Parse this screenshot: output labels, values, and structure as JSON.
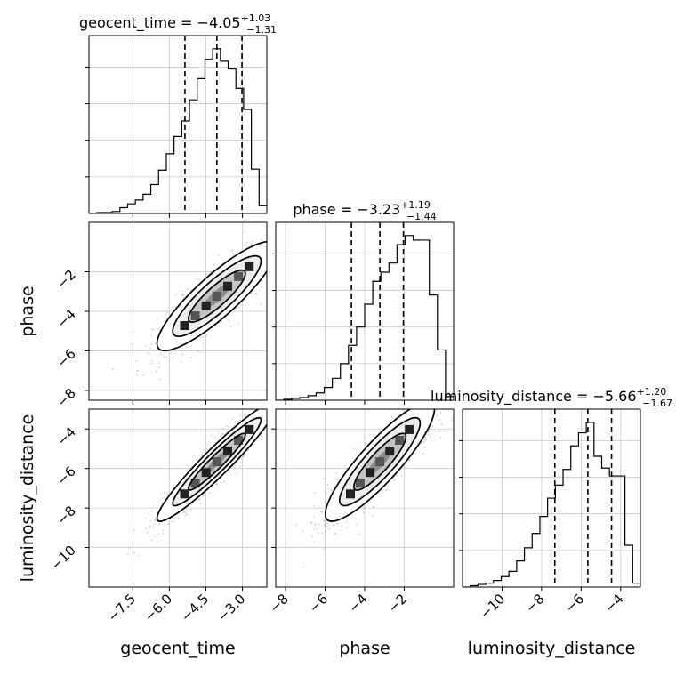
{
  "chart_data": {
    "type": "corner",
    "parameters": [
      "geocent_time",
      "phase",
      "luminosity_distance"
    ],
    "axis_labels": {
      "x": [
        "geocent_time",
        "phase",
        "luminosity_distance"
      ],
      "y": [
        "phase",
        "luminosity_distance"
      ]
    },
    "ranges": {
      "geocent_time": [
        -9.3,
        -2.0
      ],
      "phase": [
        -8.5,
        0.5
      ],
      "luminosity_distance": [
        -12.0,
        -3.0
      ]
    },
    "ticks": {
      "geocent_time": [
        -7.5,
        -6.0,
        -4.5,
        -3.0
      ],
      "phase": [
        -8,
        -6,
        -4,
        -2
      ],
      "luminosity_distance": [
        -10,
        -8,
        -6,
        -4
      ]
    },
    "tick_labels": {
      "geocent_time": [
        "−7.5",
        "−6.0",
        "−4.5",
        "−3.0"
      ],
      "phase": [
        "−8",
        "−6",
        "−4",
        "−2"
      ],
      "luminosity_distance": [
        "−10",
        "−8",
        "−6",
        "−4"
      ]
    },
    "titles": [
      {
        "parameter": "geocent_time",
        "prefix": "geocent_time = ",
        "median": "−4.05",
        "upper": "+1.03",
        "lower": "−1.31"
      },
      {
        "parameter": "phase",
        "prefix": "phase = ",
        "median": "−3.23",
        "upper": "+1.19",
        "lower": "−1.44"
      },
      {
        "parameter": "luminosity_distance",
        "prefix": "luminosity_distance = ",
        "median": "−5.66",
        "upper": "+1.20",
        "lower": "−1.67"
      }
    ],
    "quantiles": {
      "geocent_time": [
        -5.36,
        -4.05,
        -3.02
      ],
      "phase": [
        -4.67,
        -3.23,
        -2.04
      ],
      "luminosity_distance": [
        -7.33,
        -5.66,
        -4.46
      ]
    },
    "histograms": {
      "geocent_time": [
        0,
        1,
        1,
        2,
        6,
        10,
        14,
        20,
        30,
        45,
        62,
        80,
        96,
        118,
        140,
        160,
        171,
        158,
        150,
        130,
        108,
        46,
        8
      ],
      "phase": [
        0,
        1,
        2,
        3,
        5,
        8,
        14,
        24,
        40,
        60,
        80,
        105,
        130,
        140,
        150,
        170,
        180,
        175,
        175,
        115,
        55,
        4
      ],
      "luminosity_distance": [
        0,
        1,
        2,
        3,
        5,
        8,
        12,
        20,
        30,
        41,
        54,
        68,
        78,
        90,
        108,
        118,
        126,
        100,
        91,
        85,
        85,
        32,
        3
      ]
    },
    "correlation": {
      "phase_vs_geocent_time": 0.87,
      "luminosity_distance_vs_geocent_time": 0.95,
      "luminosity_distance_vs_phase": 0.88
    },
    "grid": true,
    "colors": {
      "ink": "#000000",
      "grid": "#c8c8c8",
      "scatter": "#7a7a7a"
    }
  }
}
